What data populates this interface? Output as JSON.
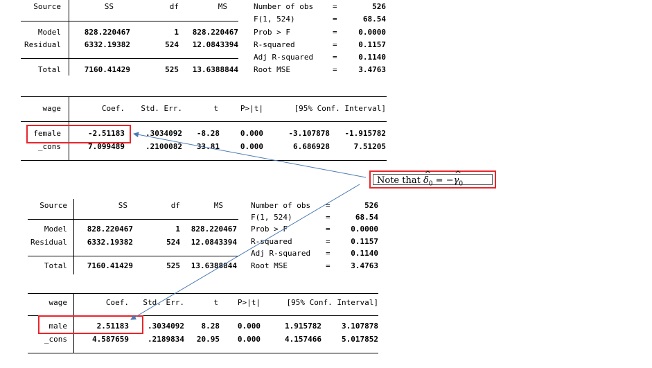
{
  "tables": [
    {
      "anova": {
        "headers": [
          "Source",
          "SS",
          "df",
          "MS"
        ],
        "rows": [
          {
            "source": "Model",
            "ss": "828.220467",
            "df": "1",
            "ms": "828.220467"
          },
          {
            "source": "Residual",
            "ss": "6332.19382",
            "df": "524",
            "ms": "12.0843394"
          },
          {
            "source": "Total",
            "ss": "7160.41429",
            "df": "525",
            "ms": "13.6388844"
          }
        ]
      },
      "stats": [
        {
          "label": "Number of obs",
          "eq": "=",
          "value": "526"
        },
        {
          "label": "F(1, 524)",
          "eq": "=",
          "value": "68.54"
        },
        {
          "label": "Prob > F",
          "eq": "=",
          "value": "0.0000"
        },
        {
          "label": "R-squared",
          "eq": "=",
          "value": "0.1157"
        },
        {
          "label": "Adj R-squared",
          "eq": "=",
          "value": "0.1140"
        },
        {
          "label": "Root MSE",
          "eq": "=",
          "value": "3.4763"
        }
      ],
      "coef": {
        "headers": [
          "wage",
          "Coef.",
          "Std. Err.",
          "t",
          "P>|t|",
          "[95% Conf. Interval]"
        ],
        "rows": [
          {
            "var": "female",
            "coef": "-2.51183",
            "se": ".3034092",
            "t": "-8.28",
            "p": "0.000",
            "lo": "-3.107878",
            "hi": "-1.915782"
          },
          {
            "var": "_cons",
            "coef": "7.099489",
            "se": ".2100082",
            "t": "33.81",
            "p": "0.000",
            "lo": "6.686928",
            "hi": "7.51205"
          }
        ]
      }
    },
    {
      "anova": {
        "headers": [
          "Source",
          "SS",
          "df",
          "MS"
        ],
        "rows": [
          {
            "source": "Model",
            "ss": "828.220467",
            "df": "1",
            "ms": "828.220467"
          },
          {
            "source": "Residual",
            "ss": "6332.19382",
            "df": "524",
            "ms": "12.0843394"
          },
          {
            "source": "Total",
            "ss": "7160.41429",
            "df": "525",
            "ms": "13.6388844"
          }
        ]
      },
      "stats": [
        {
          "label": "Number of obs",
          "eq": "=",
          "value": "526"
        },
        {
          "label": "F(1, 524)",
          "eq": "=",
          "value": "68.54"
        },
        {
          "label": "Prob > F",
          "eq": "=",
          "value": "0.0000"
        },
        {
          "label": "R-squared",
          "eq": "=",
          "value": "0.1157"
        },
        {
          "label": "Adj R-squared",
          "eq": "=",
          "value": "0.1140"
        },
        {
          "label": "Root MSE",
          "eq": "=",
          "value": "3.4763"
        }
      ],
      "coef": {
        "headers": [
          "wage",
          "Coef.",
          "Std. Err.",
          "t",
          "P>|t|",
          "[95% Conf. Interval]"
        ],
        "rows": [
          {
            "var": "male",
            "coef": "2.51183",
            "se": ".3034092",
            "t": "8.28",
            "p": "0.000",
            "lo": "1.915782",
            "hi": "3.107878"
          },
          {
            "var": "_cons",
            "coef": "4.587659",
            "se": ".2189834",
            "t": "20.95",
            "p": "0.000",
            "lo": "4.157466",
            "hi": "5.017852"
          }
        ]
      }
    }
  ],
  "note": {
    "prefix": "Note that ",
    "lhs_symbol": "δ",
    "lhs_subscript": "0",
    "equals": "=",
    "minus": "−",
    "rhs_symbol": "γ",
    "rhs_subscript": "0"
  },
  "colors": {
    "highlight": "#e8262a",
    "arrow": "#4a7ab5"
  }
}
